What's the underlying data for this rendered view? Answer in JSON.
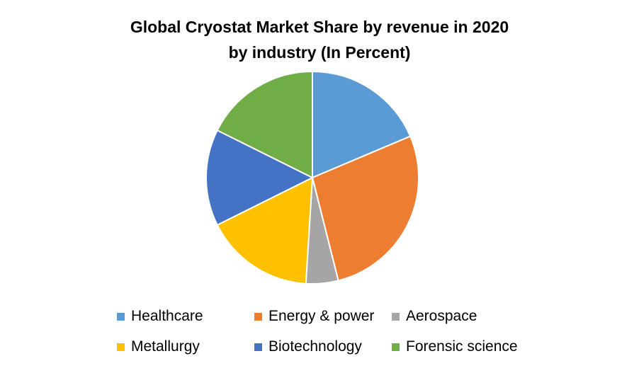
{
  "chart_data": {
    "type": "pie",
    "title_lines": [
      "Global Cryostat Market Share by revenue in 2020",
      "by industry (In Percent)"
    ],
    "categories": [
      "Healthcare",
      "Energy & power",
      "Aerospace",
      "Metallurgy",
      "Biotechnology",
      "Forensic science"
    ],
    "values": [
      19,
      28,
      5,
      17,
      15,
      18
    ],
    "colors": [
      "#5B9BD5",
      "#ED7D31",
      "#A5A5A5",
      "#FFC000",
      "#4472C4",
      "#70AD47"
    ],
    "legend_position": "bottom"
  }
}
